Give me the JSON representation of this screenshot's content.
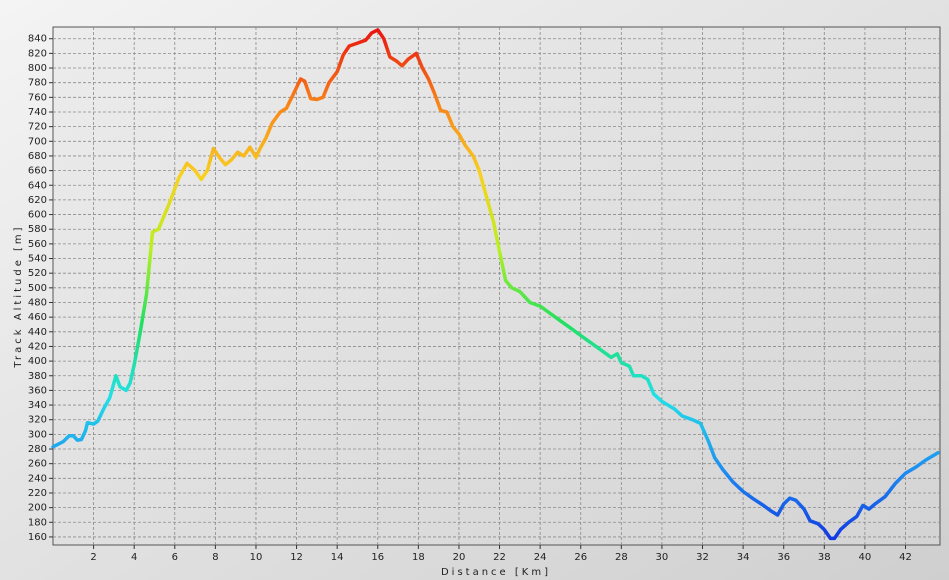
{
  "chart_data": {
    "type": "line",
    "xlabel": "Distance [Km]",
    "ylabel": "Track Altitude [m]",
    "x": [
      0,
      0.5,
      0.8,
      1.0,
      1.2,
      1.4,
      1.6,
      1.7,
      2.0,
      2.2,
      2.5,
      2.8,
      3.1,
      3.3,
      3.6,
      3.8,
      4.0,
      4.3,
      4.6,
      4.9,
      5.2,
      5.5,
      5.8,
      6.2,
      6.6,
      7.0,
      7.3,
      7.6,
      7.9,
      8.2,
      8.5,
      8.8,
      9.1,
      9.4,
      9.7,
      10.0,
      10.2,
      10.5,
      10.8,
      11.2,
      11.5,
      11.8,
      12.2,
      12.4,
      12.7,
      13.0,
      13.3,
      13.6,
      14.0,
      14.3,
      14.6,
      15.0,
      15.4,
      15.7,
      16.0,
      16.3,
      16.6,
      16.9,
      17.2,
      17.5,
      17.9,
      18.2,
      18.5,
      18.8,
      19.1,
      19.4,
      19.7,
      20.0,
      20.3,
      20.7,
      21.0,
      21.3,
      21.7,
      22.0,
      22.3,
      22.6,
      23.0,
      23.5,
      24.0,
      24.5,
      25.0,
      25.5,
      26.0,
      26.5,
      27.0,
      27.5,
      27.8,
      28.0,
      28.4,
      28.6,
      29.0,
      29.3,
      29.6,
      30.0,
      30.3,
      30.6,
      31.0,
      31.5,
      31.9,
      32.3,
      32.6,
      33.0,
      33.5,
      34.0,
      34.5,
      35.0,
      35.4,
      35.7,
      36.0,
      36.3,
      36.6,
      37.0,
      37.3,
      37.7,
      38.0,
      38.3,
      38.5,
      38.8,
      39.2,
      39.6,
      39.9,
      40.2,
      40.5,
      41.0,
      41.5,
      42.0,
      42.5,
      43.0,
      43.6
    ],
    "values": [
      283,
      290,
      298,
      298,
      292,
      293,
      305,
      316,
      314,
      318,
      335,
      350,
      380,
      365,
      360,
      370,
      395,
      440,
      490,
      576,
      580,
      600,
      620,
      650,
      670,
      660,
      648,
      660,
      690,
      678,
      668,
      675,
      685,
      680,
      692,
      678,
      690,
      705,
      725,
      740,
      745,
      762,
      785,
      782,
      758,
      757,
      760,
      780,
      795,
      818,
      830,
      834,
      838,
      848,
      852,
      840,
      815,
      810,
      803,
      812,
      820,
      800,
      785,
      765,
      742,
      740,
      720,
      710,
      695,
      680,
      660,
      630,
      590,
      550,
      510,
      500,
      495,
      480,
      475,
      465,
      455,
      445,
      435,
      425,
      415,
      405,
      410,
      398,
      393,
      380,
      380,
      375,
      355,
      345,
      340,
      335,
      325,
      320,
      315,
      290,
      268,
      252,
      235,
      222,
      212,
      203,
      195,
      190,
      205,
      213,
      210,
      198,
      182,
      178,
      170,
      158,
      158,
      170,
      180,
      188,
      203,
      198,
      205,
      215,
      233,
      247,
      255,
      265,
      275
    ],
    "colormap": [
      "#1030e0",
      "#1e8cf0",
      "#20e0e8",
      "#20e060",
      "#b8f020",
      "#f8d020",
      "#f88018",
      "#e81010"
    ],
    "xlim": [
      0,
      43.7
    ],
    "ylim": [
      149,
      856
    ],
    "xticks": [
      2,
      4,
      6,
      8,
      10,
      12,
      14,
      16,
      18,
      20,
      22,
      24,
      26,
      28,
      30,
      32,
      34,
      36,
      38,
      40,
      42
    ],
    "yticks": [
      160,
      180,
      200,
      220,
      240,
      260,
      280,
      300,
      320,
      340,
      360,
      380,
      400,
      420,
      440,
      460,
      480,
      500,
      520,
      540,
      560,
      580,
      600,
      620,
      640,
      660,
      680,
      700,
      720,
      740,
      760,
      780,
      800,
      820,
      840
    ],
    "grid": true
  }
}
